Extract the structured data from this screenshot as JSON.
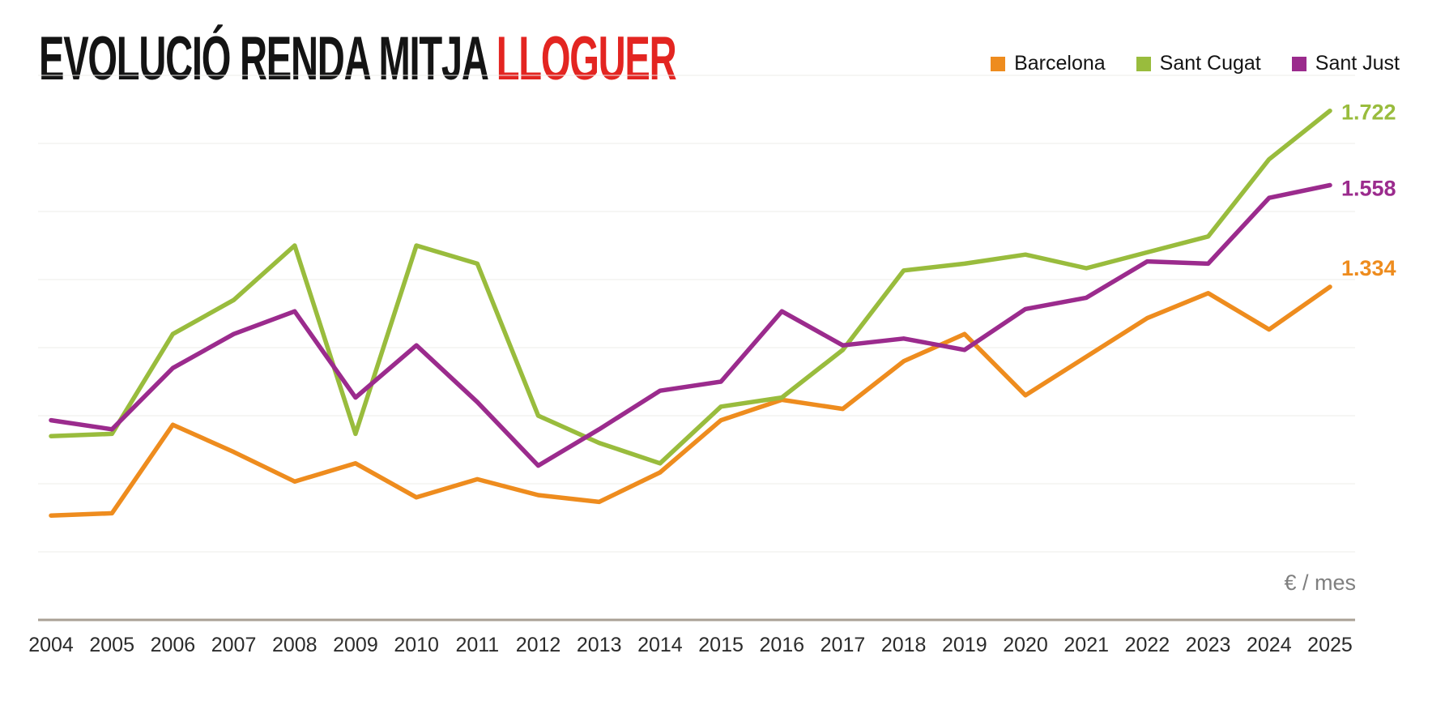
{
  "title": {
    "main": "EVOLUCIÓ RENDA MITJA ",
    "highlight": "LLOGUER"
  },
  "legend": [
    {
      "label": "Barcelona",
      "color": "#ee8c1e"
    },
    {
      "label": "Sant Cugat",
      "color": "#99bc3d"
    },
    {
      "label": "Sant Just",
      "color": "#9b2b8d"
    }
  ],
  "axis": {
    "unit_label": "€ / mes"
  },
  "chart_data": {
    "type": "line",
    "title": "EVOLUCIÓ RENDA MITJA LLOGUER",
    "ylabel": "€ / mes",
    "ylim": [
      700,
      1800
    ],
    "y_gridlines": [
      750,
      900,
      1050,
      1200,
      1350,
      1500,
      1650,
      1800
    ],
    "grid": "horizontal-faint",
    "legend_position": "top-right",
    "categories": [
      2004,
      2005,
      2006,
      2007,
      2008,
      2009,
      2010,
      2011,
      2012,
      2013,
      2014,
      2015,
      2016,
      2017,
      2018,
      2019,
      2020,
      2021,
      2022,
      2023,
      2024,
      2025
    ],
    "series": [
      {
        "name": "Barcelona",
        "color": "#ee8c1e",
        "end_label": "1.334",
        "end_value": 1334,
        "values": [
          830,
          835,
          1030,
          970,
          905,
          945,
          870,
          910,
          875,
          860,
          925,
          1040,
          1085,
          1065,
          1170,
          1230,
          1095,
          1180,
          1265,
          1320,
          1240,
          1334
        ]
      },
      {
        "name": "Sant Cugat",
        "color": "#99bc3d",
        "end_label": "1.722",
        "end_value": 1722,
        "values": [
          1005,
          1010,
          1230,
          1305,
          1425,
          1010,
          1425,
          1385,
          1050,
          990,
          945,
          1070,
          1090,
          1195,
          1370,
          1385,
          1405,
          1375,
          1410,
          1445,
          1615,
          1722
        ]
      },
      {
        "name": "Sant Just",
        "color": "#9b2b8d",
        "end_label": "1.558",
        "end_value": 1558,
        "values": [
          1040,
          1020,
          1155,
          1230,
          1280,
          1090,
          1205,
          1080,
          940,
          1020,
          1105,
          1125,
          1280,
          1205,
          1220,
          1195,
          1285,
          1310,
          1390,
          1385,
          1530,
          1558
        ]
      }
    ]
  }
}
